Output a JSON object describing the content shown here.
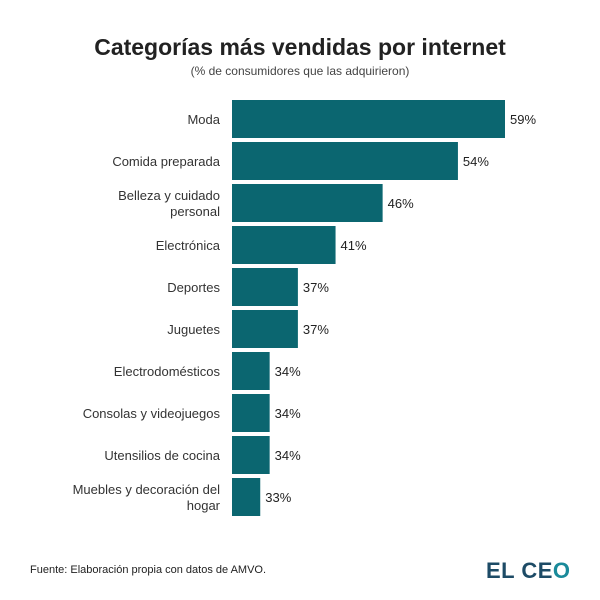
{
  "chart_data": {
    "type": "bar",
    "orientation": "horizontal",
    "title": "Categorías más vendidas por internet",
    "subtitle": "(% de consumidores que las adquirieron)",
    "categories": [
      [
        "Moda"
      ],
      [
        "Comida preparada"
      ],
      [
        "Belleza y cuidado",
        "personal"
      ],
      [
        "Electrónica"
      ],
      [
        "Deportes"
      ],
      [
        "Juguetes"
      ],
      [
        "Electrodomésticos"
      ],
      [
        "Consolas y videojuegos"
      ],
      [
        "Utensilios de cocina"
      ],
      [
        "Muebles y decoración del",
        "hogar"
      ]
    ],
    "values": [
      59,
      54,
      46,
      41,
      37,
      37,
      34,
      34,
      34,
      33
    ],
    "value_labels": [
      "59%",
      "54%",
      "46%",
      "41%",
      "37%",
      "37%",
      "34%",
      "34%",
      "34%",
      "33%"
    ],
    "xlim": [
      30,
      59
    ],
    "grid": false,
    "bar_color": "#0b6670"
  },
  "footer": {
    "source": "Fuente: Elaboración propia con datos de AMVO.",
    "logo_text": "EL CEO",
    "logo_color": "#1d4b66"
  }
}
